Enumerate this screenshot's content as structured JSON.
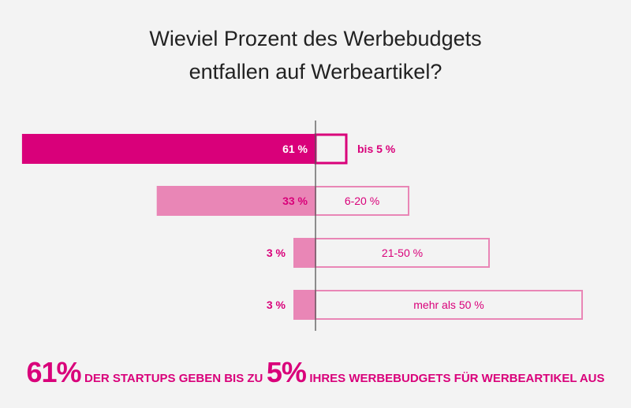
{
  "chart_data": {
    "type": "bar",
    "orientation": "horizontal-diverging",
    "title_line1": "Wieviel Prozent des Werbebudgets",
    "title_line2": "entfallen auf Werbeartikel?",
    "categories": [
      "bis 5 %",
      "6-20 %",
      "21-50 %",
      "mehr als 50 %"
    ],
    "values": [
      61,
      33,
      3,
      3
    ],
    "value_labels": [
      "61 %",
      "33 %",
      "3 %",
      "3 %"
    ],
    "grid": false,
    "colors": {
      "highlight": "#d9007a",
      "normal": "#e986b6",
      "text": "#d9007a"
    }
  },
  "footer": {
    "big1": "61%",
    "text1": "DER STARTUPS GEBEN BIS ZU",
    "big2": "5%",
    "text2": "IHRES WERBEBUDGETS FÜR WERBEARTIKEL AUS"
  }
}
